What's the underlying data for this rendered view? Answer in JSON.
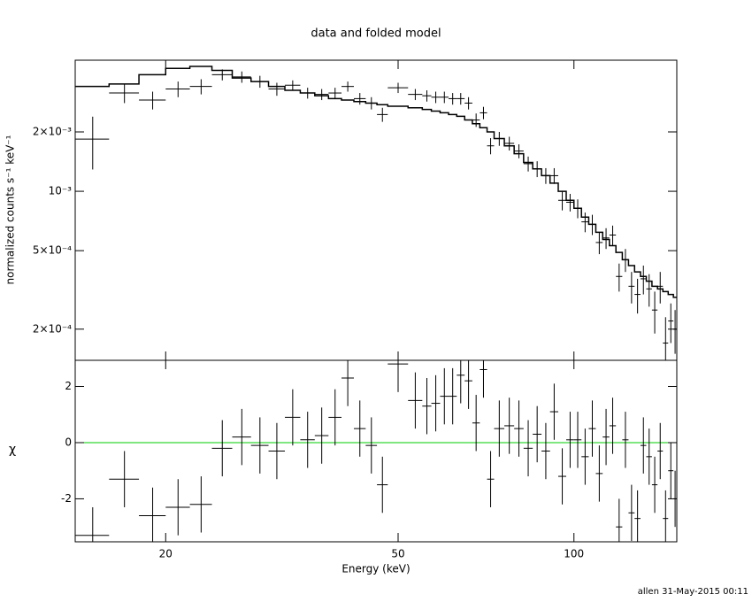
{
  "chart_data": [
    {
      "type": "errorbar",
      "title": "data and folded model",
      "ylabel": "normalized counts s⁻¹ keV⁻¹",
      "xscale": "log",
      "yscale": "log",
      "xlim": [
        14,
        150
      ],
      "ylim": [
        0.000139,
        0.00462
      ],
      "xticks": [
        20,
        50,
        100
      ],
      "yticks": [
        {
          "value": 0.0002,
          "label": "2×10⁻⁴"
        },
        {
          "value": 0.0005,
          "label": "5×10⁻⁴"
        },
        {
          "value": 0.001,
          "label": "10⁻³"
        },
        {
          "value": 0.002,
          "label": "2×10⁻³"
        }
      ],
      "color": "#000000",
      "x": [
        15,
        17,
        19,
        21,
        23,
        25,
        27,
        29,
        31,
        33,
        35,
        37,
        39,
        41,
        43,
        45,
        47,
        50,
        53.5,
        56,
        58,
        60,
        62,
        64,
        66,
        68,
        70,
        72,
        74.5,
        77.5,
        80.5,
        83.5,
        86.5,
        89.5,
        92.5,
        95.5,
        98.5,
        101.5,
        104.5,
        107.5,
        110.5,
        113.5,
        116.5,
        119.5,
        122.5,
        125.5,
        128.5,
        131.5,
        134.5,
        137.5,
        140.5,
        143.5,
        146.5,
        149
      ],
      "x_err": [
        1,
        1,
        1,
        1,
        1,
        1,
        1,
        1,
        1,
        1,
        1,
        1,
        1,
        1,
        1,
        1,
        1,
        2,
        1.5,
        1,
        1,
        1,
        1,
        1,
        1,
        1,
        1,
        1,
        1.5,
        1.5,
        1.5,
        1.5,
        1.5,
        1.5,
        1.5,
        1.5,
        1.5,
        1.5,
        1.5,
        1.5,
        1.5,
        1.5,
        1.5,
        1.5,
        1.5,
        1.5,
        1.5,
        1.5,
        1.5,
        1.5,
        1.5,
        1.5,
        1.5,
        1
      ],
      "values": [
        0.00184,
        0.00315,
        0.0029,
        0.0033,
        0.0034,
        0.0039,
        0.0038,
        0.0036,
        0.0033,
        0.00345,
        0.00315,
        0.0031,
        0.00315,
        0.0034,
        0.00295,
        0.0028,
        0.00245,
        0.00335,
        0.0031,
        0.00305,
        0.003,
        0.003,
        0.00295,
        0.00295,
        0.0028,
        0.0023,
        0.0025,
        0.0017,
        0.00185,
        0.00175,
        0.0016,
        0.00138,
        0.0013,
        0.0012,
        0.0012,
        0.0009,
        0.00088,
        0.00082,
        0.0007,
        0.00068,
        0.00055,
        0.00058,
        0.0006,
        0.00037,
        0.00045,
        0.00033,
        0.0003,
        0.00036,
        0.00032,
        0.00025,
        0.00033,
        0.00017,
        0.00022,
        0.0002
      ],
      "errors": [
        0.00055,
        0.00035,
        0.0003,
        0.0003,
        0.0003,
        0.00025,
        0.00025,
        0.00025,
        0.00025,
        0.0002,
        0.0002,
        0.0002,
        0.0002,
        0.0002,
        0.0002,
        0.0002,
        0.0002,
        0.0002,
        0.0002,
        0.0002,
        0.0002,
        0.0002,
        0.0002,
        0.0002,
        0.0002,
        0.00018,
        0.00018,
        0.00016,
        0.00015,
        0.00014,
        0.00013,
        0.00012,
        0.00012,
        0.00011,
        0.00011,
        0.0001,
        9e-05,
        9e-05,
        8e-05,
        8e-05,
        7e-05,
        7e-05,
        7e-05,
        6e-05,
        6e-05,
        6e-05,
        6e-05,
        6e-05,
        6e-05,
        6e-05,
        6e-05,
        6e-05,
        5e-05,
        5e-05
      ],
      "model": [
        0.0034,
        0.0035,
        0.0039,
        0.0042,
        0.0043,
        0.0041,
        0.00375,
        0.0036,
        0.0034,
        0.00325,
        0.00315,
        0.00305,
        0.00295,
        0.0029,
        0.00285,
        0.0028,
        0.00275,
        0.0027,
        0.00265,
        0.0026,
        0.00255,
        0.0025,
        0.00245,
        0.0024,
        0.0023,
        0.0022,
        0.0021,
        0.002,
        0.00185,
        0.0017,
        0.00155,
        0.0014,
        0.0013,
        0.0012,
        0.0011,
        0.001,
        0.0009,
        0.00082,
        0.00074,
        0.00068,
        0.00062,
        0.00057,
        0.00053,
        0.00049,
        0.00045,
        0.00042,
        0.00039,
        0.00037,
        0.00035,
        0.00033,
        0.00032,
        0.00031,
        0.0003,
        0.00029
      ]
    },
    {
      "type": "errorbar",
      "xlabel": "Energy (keV)",
      "ylabel": "χ",
      "xscale": "log",
      "xlim": [
        14,
        150
      ],
      "ylim": [
        -3.53,
        2.93
      ],
      "xticks": [
        20,
        50,
        100
      ],
      "yticks": [
        -2,
        0,
        2
      ],
      "color": "#000000",
      "hline": 0,
      "hline_color": "#00cc00",
      "values": [
        -3.3,
        -1.3,
        -2.6,
        -2.3,
        -2.2,
        -0.2,
        0.2,
        -0.1,
        -0.3,
        0.9,
        0.1,
        0.25,
        0.9,
        2.3,
        0.5,
        -0.1,
        -1.5,
        2.8,
        1.5,
        1.3,
        1.4,
        1.65,
        1.65,
        2.4,
        2.2,
        0.7,
        2.6,
        -1.3,
        0.5,
        0.6,
        0.5,
        -0.2,
        0.3,
        -0.3,
        1.1,
        -1.2,
        0.1,
        0.1,
        -0.5,
        0.5,
        -1.1,
        0.2,
        0.6,
        -3.0,
        0.1,
        -2.5,
        -2.7,
        -0.1,
        -0.5,
        -1.5,
        -0.3,
        -2.7,
        -1.0,
        -2.0
      ],
      "errors": [
        1,
        1,
        1,
        1,
        1,
        1,
        1,
        1,
        1,
        1,
        1,
        1,
        1,
        1,
        1,
        1,
        1,
        1,
        1,
        1,
        1,
        1,
        1,
        1,
        1,
        1,
        1,
        1,
        1,
        1,
        1,
        1,
        1,
        1,
        1,
        1,
        1,
        1,
        1,
        1,
        1,
        1,
        1,
        1,
        1,
        1,
        1,
        1,
        1,
        1,
        1,
        1,
        1,
        1
      ]
    }
  ],
  "footer": "allen 31-May-2015 00:11"
}
